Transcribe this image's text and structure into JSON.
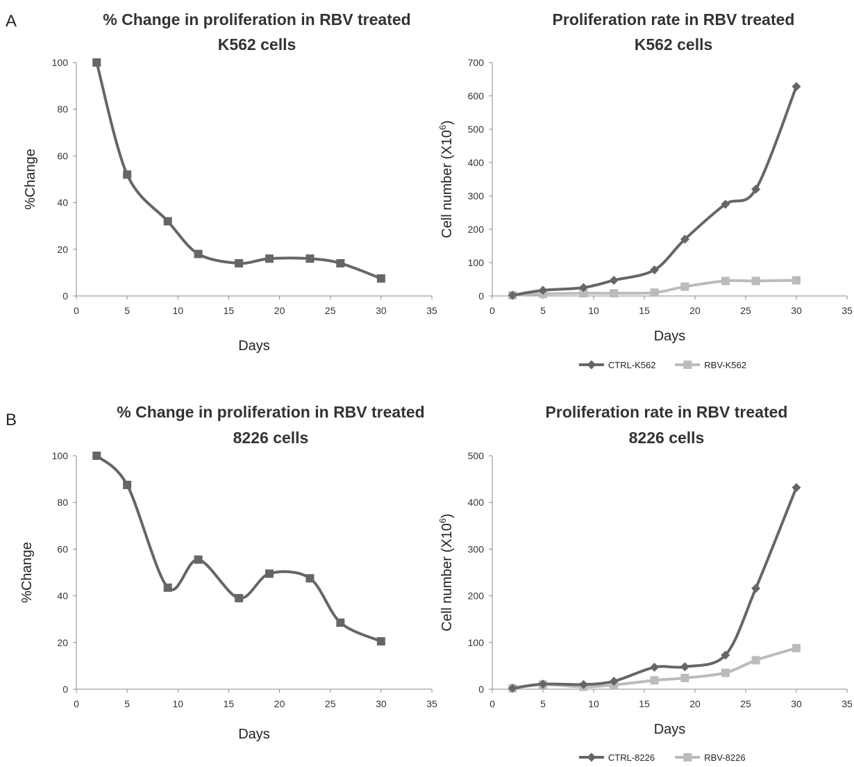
{
  "panel_labels": [
    "A",
    "B"
  ],
  "chart_data": [
    {
      "type": "line",
      "title": [
        "% Change  in proliferation  in RBV treated",
        "K562 cells"
      ],
      "xlabel": "Days",
      "ylabel": "%Change",
      "xlim": [
        0,
        35
      ],
      "ylim": [
        0,
        100
      ],
      "x_ticks": [
        0,
        5,
        10,
        15,
        20,
        25,
        30,
        35
      ],
      "y_ticks": [
        0,
        20,
        40,
        60,
        80,
        100
      ],
      "grid": false,
      "legend": "none",
      "series": [
        {
          "x": [
            2,
            5,
            9,
            12,
            16,
            19,
            23,
            26,
            30
          ],
          "values": [
            100,
            52,
            32,
            18,
            14,
            16,
            16,
            14,
            7.5
          ],
          "color": "#666666",
          "marker": "square"
        }
      ]
    },
    {
      "type": "line",
      "title": [
        "Proliferation rate in RBV treated",
        "K562 cells"
      ],
      "xlabel": "Days",
      "ylabel": "Cell number (X10",
      "ylabel_sup": "6",
      "ylabel_end": ")",
      "xlim": [
        0,
        35
      ],
      "ylim": [
        0,
        700
      ],
      "x_ticks": [
        0,
        5,
        10,
        15,
        20,
        25,
        30,
        35
      ],
      "y_ticks": [
        0,
        100,
        200,
        300,
        400,
        500,
        600,
        700
      ],
      "grid": false,
      "legend": "bottom",
      "series": [
        {
          "name": "CTRL-K562",
          "x": [
            2,
            5,
            9,
            12,
            16,
            19,
            23,
            26,
            30
          ],
          "values": [
            2,
            17,
            25,
            47,
            78,
            170,
            275,
            320,
            628
          ],
          "color": "#666666",
          "marker": "diamond"
        },
        {
          "name": "RBV-K562",
          "x": [
            2,
            5,
            9,
            12,
            16,
            19,
            23,
            26,
            30
          ],
          "values": [
            2,
            6,
            8,
            8,
            10,
            28,
            45,
            45,
            47
          ],
          "color": "#bbbbbb",
          "marker": "square"
        }
      ]
    },
    {
      "type": "line",
      "title": [
        "% Change  in proliferation  in RBV treated",
        "8226 cells"
      ],
      "xlabel": "Days",
      "ylabel": "%Change",
      "xlim": [
        0,
        35
      ],
      "ylim": [
        0,
        100
      ],
      "x_ticks": [
        0,
        5,
        10,
        15,
        20,
        25,
        30,
        35
      ],
      "y_ticks": [
        0,
        20,
        40,
        60,
        80,
        100
      ],
      "grid": false,
      "legend": "none",
      "series": [
        {
          "x": [
            2,
            5,
            9,
            12,
            16,
            19,
            23,
            26,
            30
          ],
          "values": [
            100,
            87.5,
            43.5,
            55.5,
            39,
            49.5,
            47.5,
            28.5,
            20.5
          ],
          "color": "#666666",
          "marker": "square"
        }
      ]
    },
    {
      "type": "line",
      "title": [
        "Proliferation rate in RBV treated",
        "8226 cells"
      ],
      "xlabel": "Days",
      "ylabel": "Cell number (X10",
      "ylabel_sup": "6",
      "ylabel_end": ")",
      "xlim": [
        0,
        35
      ],
      "ylim": [
        0,
        500
      ],
      "x_ticks": [
        0,
        5,
        10,
        15,
        20,
        25,
        30,
        35
      ],
      "y_ticks": [
        0,
        100,
        200,
        300,
        400,
        500
      ],
      "grid": false,
      "legend": "bottom",
      "series": [
        {
          "name": "CTRL-8226",
          "x": [
            2,
            5,
            9,
            12,
            16,
            19,
            23,
            26,
            30
          ],
          "values": [
            2,
            11,
            10,
            17,
            47,
            48,
            73,
            216,
            432
          ],
          "color": "#666666",
          "marker": "diamond"
        },
        {
          "name": "RBV-8226",
          "x": [
            2,
            5,
            9,
            12,
            16,
            19,
            23,
            26,
            30
          ],
          "values": [
            2,
            10,
            5,
            9,
            19,
            24,
            35,
            62,
            88
          ],
          "color": "#bbbbbb",
          "marker": "square"
        }
      ]
    }
  ]
}
